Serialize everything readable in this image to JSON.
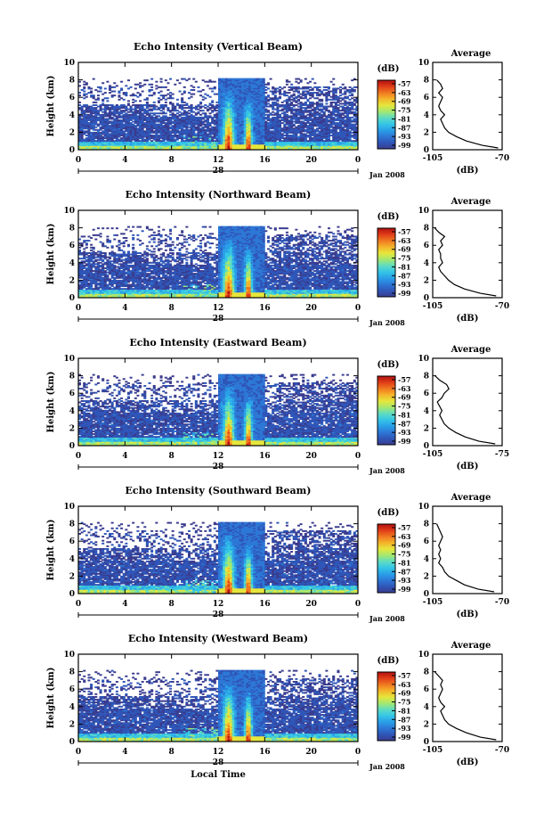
{
  "chart_data": [
    {
      "type": "heatmap",
      "title": "Echo Intensity (Vertical Beam)",
      "ylabel": "Height (km)",
      "x_ticks": [
        "0",
        "4",
        "8",
        "12",
        "16",
        "20",
        "0"
      ],
      "y_ticks": [
        "0",
        "2",
        "4",
        "6",
        "8",
        "10"
      ],
      "xlim": [
        0,
        24
      ],
      "ylim": [
        0,
        10
      ],
      "day_label": "28",
      "date_label": "Jan 2008",
      "colorbar": {
        "label": "(dB)",
        "ticks": [
          "-57",
          "-63",
          "-69",
          "-75",
          "-81",
          "-87",
          "-93",
          "-99"
        ]
      },
      "profile": {
        "title": "Average",
        "xlabel": "(dB)",
        "x_ticks": [
          "-105",
          "-70"
        ],
        "y_ticks": [
          "0",
          "2",
          "4",
          "6",
          "8",
          "10"
        ],
        "height": [
          0.2,
          0.5,
          1.0,
          1.5,
          2.0,
          2.5,
          3.0,
          3.5,
          4.0,
          4.5,
          5.0,
          5.5,
          6.0,
          6.5,
          7.0,
          7.5,
          8.0
        ],
        "value": [
          -72,
          -80,
          -88,
          -93,
          -97,
          -99,
          -100,
          -101,
          -99,
          -101,
          -102,
          -101,
          -100,
          -102,
          -100,
          -101,
          -103
        ]
      }
    },
    {
      "type": "heatmap",
      "title": "Echo Intensity (Northward Beam)",
      "ylabel": "Height (km)",
      "x_ticks": [
        "0",
        "4",
        "8",
        "12",
        "16",
        "20",
        "0"
      ],
      "y_ticks": [
        "0",
        "2",
        "4",
        "6",
        "8",
        "10"
      ],
      "xlim": [
        0,
        24
      ],
      "ylim": [
        0,
        10
      ],
      "day_label": "28",
      "date_label": "Jan 2008",
      "colorbar": {
        "label": "(dB)",
        "ticks": [
          "-57",
          "-63",
          "-69",
          "-75",
          "-81",
          "-87",
          "-93",
          "-99"
        ]
      },
      "profile": {
        "title": "Average",
        "xlabel": "(dB)",
        "x_ticks": [
          "-105",
          "-70"
        ],
        "y_ticks": [
          "0",
          "2",
          "4",
          "6",
          "8",
          "10"
        ],
        "height": [
          0.2,
          0.5,
          1.0,
          1.5,
          2.0,
          2.5,
          3.0,
          3.5,
          4.0,
          4.5,
          5.0,
          5.5,
          6.0,
          6.5,
          7.0,
          7.5,
          8.0
        ],
        "value": [
          -73,
          -81,
          -89,
          -94,
          -97,
          -99,
          -101,
          -102,
          -100,
          -101,
          -101,
          -102,
          -100,
          -101,
          -99,
          -102,
          -104
        ]
      }
    },
    {
      "type": "heatmap",
      "title": "Echo Intensity (Eastward Beam)",
      "ylabel": "Height (km)",
      "x_ticks": [
        "0",
        "4",
        "8",
        "12",
        "16",
        "20",
        "0"
      ],
      "y_ticks": [
        "0",
        "2",
        "4",
        "6",
        "8",
        "10"
      ],
      "xlim": [
        0,
        24
      ],
      "ylim": [
        0,
        10
      ],
      "day_label": "28",
      "date_label": "Jan 2008",
      "colorbar": {
        "label": "(dB)",
        "ticks": [
          "-57",
          "-63",
          "-69",
          "-75",
          "-81",
          "-87",
          "-93",
          "-99"
        ]
      },
      "profile": {
        "title": "Average",
        "xlabel": "(dB)",
        "x_ticks": [
          "-105",
          "-75"
        ],
        "y_ticks": [
          "0",
          "2",
          "4",
          "6",
          "8",
          "10"
        ],
        "height": [
          0.2,
          0.5,
          1.0,
          1.5,
          2.0,
          2.5,
          3.0,
          3.5,
          4.0,
          4.5,
          5.0,
          5.5,
          6.0,
          6.5,
          7.0,
          7.5,
          8.0
        ],
        "value": [
          -78,
          -85,
          -91,
          -95,
          -98,
          -100,
          -101,
          -102,
          -101,
          -102,
          -103,
          -101,
          -100,
          -98,
          -99,
          -102,
          -104
        ]
      }
    },
    {
      "type": "heatmap",
      "title": "Echo Intensity (Southward Beam)",
      "ylabel": "Height (km)",
      "x_ticks": [
        "0",
        "4",
        "8",
        "12",
        "16",
        "20",
        "0"
      ],
      "y_ticks": [
        "0",
        "2",
        "4",
        "6",
        "8",
        "10"
      ],
      "xlim": [
        0,
        24
      ],
      "ylim": [
        0,
        10
      ],
      "day_label": "28",
      "date_label": "Jan 2008",
      "colorbar": {
        "label": "(dB)",
        "ticks": [
          "-57",
          "-63",
          "-69",
          "-75",
          "-81",
          "-87",
          "-93",
          "-99"
        ]
      },
      "profile": {
        "title": "Average",
        "xlabel": "(dB)",
        "x_ticks": [
          "-105",
          "-70"
        ],
        "y_ticks": [
          "0",
          "2",
          "4",
          "6",
          "8",
          "10"
        ],
        "height": [
          0.2,
          0.5,
          1.0,
          1.5,
          2.0,
          2.5,
          3.0,
          3.5,
          4.0,
          4.5,
          5.0,
          5.5,
          6.0,
          6.5,
          7.0,
          7.5,
          8.0
        ],
        "value": [
          -74,
          -82,
          -89,
          -93,
          -97,
          -99,
          -100,
          -102,
          -101,
          -102,
          -101,
          -102,
          -101,
          -100,
          -101,
          -102,
          -103
        ]
      }
    },
    {
      "type": "heatmap",
      "title": "Echo Intensity (Westward Beam)",
      "ylabel": "Height (km)",
      "xlabel": "Local Time",
      "x_ticks": [
        "0",
        "4",
        "8",
        "12",
        "16",
        "20",
        "0"
      ],
      "y_ticks": [
        "0",
        "2",
        "4",
        "6",
        "8",
        "10"
      ],
      "xlim": [
        0,
        24
      ],
      "ylim": [
        0,
        10
      ],
      "day_label": "28",
      "date_label": "Jan 2008",
      "colorbar": {
        "label": "(dB)",
        "ticks": [
          "-57",
          "-63",
          "-69",
          "-75",
          "-81",
          "-87",
          "-93",
          "-99"
        ]
      },
      "profile": {
        "title": "Average",
        "xlabel": "(dB)",
        "x_ticks": [
          "-105",
          "-70"
        ],
        "y_ticks": [
          "0",
          "2",
          "4",
          "6",
          "8",
          "10"
        ],
        "height": [
          0.2,
          0.5,
          1.0,
          1.5,
          2.0,
          2.5,
          3.0,
          3.5,
          4.0,
          4.5,
          5.0,
          5.5,
          6.0,
          6.5,
          7.0,
          7.5,
          8.0
        ],
        "value": [
          -73,
          -81,
          -88,
          -93,
          -97,
          -99,
          -100,
          -101,
          -99,
          -101,
          -102,
          -101,
          -100,
          -101,
          -100,
          -102,
          -104
        ]
      }
    }
  ],
  "colors": {
    "colormap": [
      "#3a3c8f",
      "#2f56b8",
      "#2d78d6",
      "#2aa0e8",
      "#35c6e6",
      "#5fdcc0",
      "#a6e86e",
      "#e6e63c",
      "#f4b42a",
      "#f07820",
      "#e03c18",
      "#b01010"
    ],
    "background": "#ffffff"
  }
}
